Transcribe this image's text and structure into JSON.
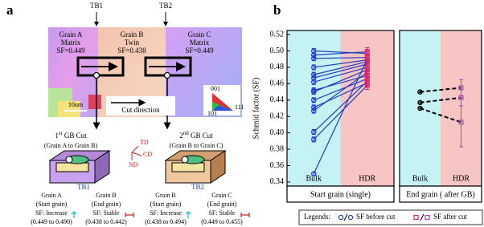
{
  "panel_labels": [
    "a",
    "b"
  ],
  "diagram": {
    "boundaries": [
      "TB1",
      "TB2"
    ],
    "grains": [
      {
        "name": "Grain A",
        "role": "Matrix",
        "sf": "SF=0.449"
      },
      {
        "name": "Grain B",
        "role": "Twin",
        "sf": "SF=0.438"
      },
      {
        "name": "Grain C",
        "role": "Matrix",
        "sf": "SF=0.449"
      }
    ],
    "scale_bar": "10um",
    "cut_direction": "Cut direction",
    "ipf_poles": [
      "001",
      "101",
      "111"
    ],
    "cuts": [
      {
        "ordinal": "1",
        "suffix": "st",
        "title": " GB Cut",
        "subtitle": "(Grain A to Grain B)",
        "boundary": "TB1",
        "start": {
          "name": "Grain A",
          "role": "(Start grain)",
          "sf": "SF: Increase",
          "range": "(0.449 to 0.490)"
        },
        "end": {
          "name": "Grain B",
          "role": "(End grain)",
          "sf": "SF: Stable",
          "range": "(0.438 to 0.442)"
        }
      },
      {
        "ordinal": "2",
        "suffix": "nd",
        "title": " GB Cut",
        "subtitle": "(Grain B to Grain C)",
        "boundary": "TB2",
        "start": {
          "name": "Grain B",
          "role": "(Start grain)",
          "sf": "SF: Increase",
          "range": "(0.438 to 0.494)"
        },
        "end": {
          "name": "Grain C",
          "role": "(End grain)",
          "sf": "SF: Stable",
          "range": "(0.449 to 0.455)"
        }
      }
    ],
    "axes": [
      "TD",
      "CD",
      "ND"
    ]
  },
  "chart_data": [
    {
      "type": "line",
      "ylabel": "Schmid factor (SF)",
      "xlabel": "Start grain (single)",
      "categories": [
        "Bulk",
        "HDR"
      ],
      "band_colors": [
        "#c4f2f5",
        "#f7c6c4"
      ],
      "ylim": [
        0.335,
        0.525
      ],
      "yticks": [
        0.34,
        0.36,
        0.38,
        {
          "value": 0.4,
          "label": "0.40"
        },
        0.42,
        0.44,
        0.46,
        0.48,
        {
          "value": 0.5,
          "label": "0.50"
        },
        0.52
      ],
      "line_color": "#1f3fbf",
      "line_style": "solid",
      "before_color": "#1f3fd8",
      "after_color": "#e0206a",
      "series": [
        {
          "values": [
            0.5,
            0.497
          ],
          "errors": [
            0.003,
            0.005
          ]
        },
        {
          "values": [
            0.495,
            0.499
          ],
          "errors": [
            0.003,
            0.005
          ]
        },
        {
          "values": [
            0.491,
            0.492
          ],
          "errors": [
            0.003,
            0.005
          ]
        },
        {
          "values": [
            0.48,
            0.489
          ],
          "errors": [
            0.003,
            0.005
          ]
        },
        {
          "values": [
            0.471,
            0.487
          ],
          "errors": [
            0.003,
            0.005
          ]
        },
        {
          "values": [
            0.467,
            0.484
          ],
          "errors": [
            0.003,
            0.005
          ]
        },
        {
          "values": [
            0.462,
            0.48
          ],
          "errors": [
            0.003,
            0.005
          ]
        },
        {
          "values": [
            0.452,
            0.47
          ],
          "errors": [
            0.003,
            0.005
          ]
        },
        {
          "values": [
            0.45,
            0.477
          ],
          "errors": [
            0.003,
            0.005
          ]
        },
        {
          "values": [
            0.44,
            0.466
          ],
          "errors": [
            0.003,
            0.005
          ]
        },
        {
          "values": [
            0.431,
            0.461
          ],
          "errors": [
            0.003,
            0.005
          ]
        },
        {
          "values": [
            0.427,
            0.474
          ],
          "errors": [
            0.003,
            0.005
          ]
        },
        {
          "values": [
            0.401,
            0.463
          ],
          "errors": [
            0.003,
            0.005
          ]
        },
        {
          "values": [
            0.392,
            0.458
          ],
          "errors": [
            0.003,
            0.005
          ]
        },
        {
          "values": [
            0.35,
            0.49
          ],
          "errors": [
            0.002,
            0.005
          ]
        }
      ]
    },
    {
      "type": "line",
      "xlabel": "End grain ( after GB)",
      "categories": [
        "Bulk",
        "HDR"
      ],
      "band_colors": [
        "#c4f2f5",
        "#f7c6c4"
      ],
      "ylim": [
        0.335,
        0.525
      ],
      "line_color": "#000000",
      "line_style": "dashed",
      "before_color": "#000000",
      "after_color": "#b040c0",
      "series": [
        {
          "values": [
            0.45,
            0.455
          ],
          "errors": [
            0.001,
            0.01
          ]
        },
        {
          "values": [
            0.437,
            0.443
          ],
          "errors": [
            0.001,
            0.01
          ]
        },
        {
          "values": [
            0.43,
            0.413
          ],
          "errors": [
            0.001,
            0.03
          ]
        }
      ]
    }
  ],
  "legend": {
    "title": "Legends:",
    "items": [
      "SF before cut",
      "SF after cut"
    ]
  }
}
